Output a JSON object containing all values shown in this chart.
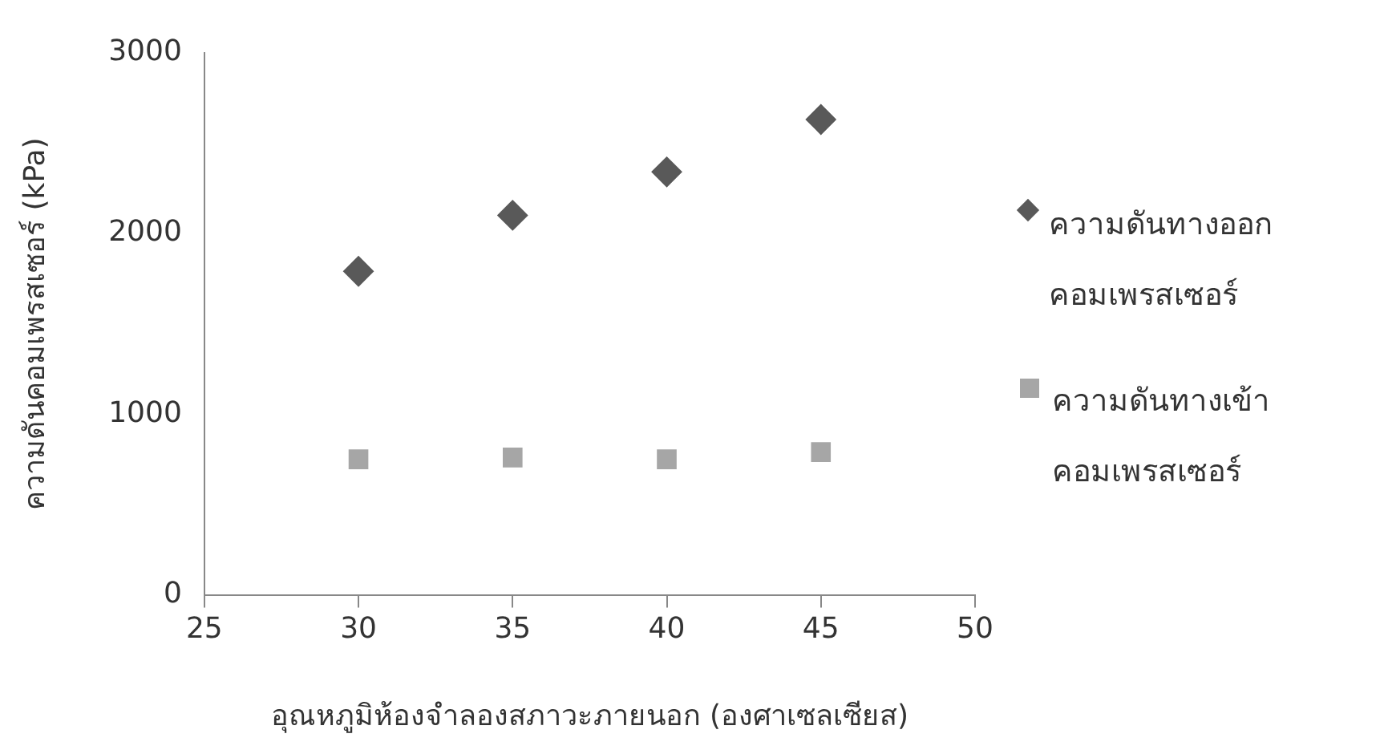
{
  "chart_data": {
    "type": "scatter",
    "xlabel": "อุณหภูมิห้องจำลองสภาวะภายนอก (องศาเซลเซียส)",
    "ylabel": "ความดันคอมเพรสเซอร์ (kPa)",
    "x": [
      30,
      35,
      40,
      45
    ],
    "series": [
      {
        "name": "ความดันทางออกคอมเพรสเซอร์",
        "color": "#595959",
        "marker": "diamond",
        "values": [
          1790,
          2100,
          2340,
          2630
        ]
      },
      {
        "name": "ความดันทางเข้าคอมเพรสเซอร์",
        "color": "#a6a6a6",
        "marker": "square",
        "values": [
          750,
          760,
          750,
          790
        ]
      }
    ],
    "xlim": [
      25,
      50
    ],
    "xticks": [
      25,
      30,
      35,
      40,
      45,
      50
    ],
    "ylim": [
      0,
      3000
    ],
    "yticks": [
      0,
      1000,
      2000,
      3000
    ],
    "grid": false,
    "legend": "right"
  }
}
